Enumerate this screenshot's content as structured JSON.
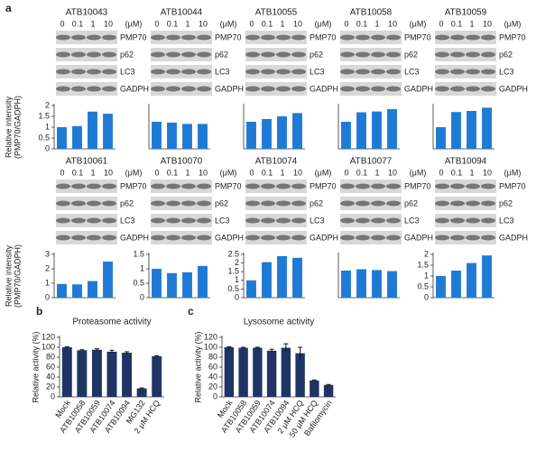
{
  "panel_labels": [
    "a",
    "b",
    "c"
  ],
  "chart_data": [
    {
      "type": "bar",
      "title": "ATB10043",
      "unit": "(μM)",
      "categories": [
        "0",
        "0.1",
        "1",
        "10"
      ],
      "blots": [
        "PMP70",
        "p62",
        "LC3",
        "GADPH"
      ],
      "ylabel": [
        "Relative intensity",
        "(PMP70/GADPH)"
      ],
      "values": [
        1.0,
        1.05,
        1.72,
        1.62
      ],
      "color": "#1f7ad6",
      "ylim": [
        0,
        2
      ],
      "yticks": [
        0,
        0.5,
        1,
        1.5,
        2
      ]
    },
    {
      "type": "bar",
      "title": "ATB10044",
      "unit": "(μM)",
      "categories": [
        "0",
        "0.1",
        "1",
        "10"
      ],
      "blots": [
        "PMP70",
        "p62",
        "LC3",
        "GADPH"
      ],
      "values": [
        1.0,
        0.97,
        0.92,
        0.92
      ],
      "color": "#1f7ad6",
      "ylim": [
        0,
        1.6
      ]
    },
    {
      "type": "bar",
      "title": "ATB10055",
      "unit": "(μM)",
      "categories": [
        "0",
        "0.1",
        "1",
        "10"
      ],
      "blots": [
        "PMP70",
        "p62",
        "LC3",
        "GADPH"
      ],
      "values": [
        1.0,
        1.1,
        1.2,
        1.32
      ],
      "color": "#1f7ad6",
      "ylim": [
        0,
        1.6
      ]
    },
    {
      "type": "bar",
      "title": "ATB10058",
      "unit": "(μM)",
      "categories": [
        "0",
        "0.1",
        "1",
        "10"
      ],
      "blots": [
        "PMP70",
        "p62",
        "LC3",
        "GADPH"
      ],
      "values": [
        1.0,
        1.35,
        1.38,
        1.47
      ],
      "color": "#1f7ad6",
      "ylim": [
        0,
        1.6
      ]
    },
    {
      "type": "bar",
      "title": "ATB10059",
      "unit": "(μM)",
      "categories": [
        "0",
        "0.1",
        "1",
        "10"
      ],
      "blots": [
        "PMP70",
        "p62",
        "LC3",
        "GADPH"
      ],
      "values": [
        1.0,
        1.7,
        1.75,
        1.9
      ],
      "color": "#1f7ad6",
      "ylim": [
        0,
        2
      ]
    },
    {
      "type": "bar",
      "title": "ATB10061",
      "unit": "(μM)",
      "categories": [
        "0",
        "0.1",
        "1",
        "10"
      ],
      "blots": [
        "PMP70",
        "p62",
        "LC3",
        "GADPH"
      ],
      "ylabel": [
        "Relative intensity",
        "(PMP70/GADPH)"
      ],
      "values": [
        0.95,
        0.92,
        1.15,
        2.5
      ],
      "color": "#1f7ad6",
      "ylim": [
        0,
        3
      ],
      "yticks": [
        0,
        1,
        2,
        3
      ]
    },
    {
      "type": "bar",
      "title": "ATB10070",
      "unit": "(μM)",
      "categories": [
        "0",
        "0.1",
        "1",
        "10"
      ],
      "blots": [
        "PMP70",
        "p62",
        "LC3",
        "GADPH"
      ],
      "values": [
        1.0,
        0.85,
        0.88,
        1.1
      ],
      "color": "#1f7ad6",
      "ylim": [
        0,
        1.5
      ],
      "yticks": [
        0,
        0.5,
        1,
        1.5
      ]
    },
    {
      "type": "bar",
      "title": "ATB10074",
      "unit": "(μM)",
      "categories": [
        "0",
        "0.1",
        "1",
        "10"
      ],
      "blots": [
        "PMP70",
        "p62",
        "LC3",
        "GADPH"
      ],
      "values": [
        1.0,
        2.05,
        2.4,
        2.3
      ],
      "color": "#1f7ad6",
      "ylim": [
        0,
        2.5
      ],
      "yticks": [
        0,
        0.5,
        1,
        1.5,
        2,
        2.5
      ]
    },
    {
      "type": "bar",
      "title": "ATB10077",
      "unit": "(μM)",
      "categories": [
        "0",
        "0.1",
        "1",
        "10"
      ],
      "blots": [
        "PMP70",
        "p62",
        "LC3",
        "GADPH"
      ],
      "values": [
        1.0,
        1.05,
        1.02,
        0.98
      ],
      "color": "#1f7ad6",
      "ylim": [
        0,
        1.6
      ]
    },
    {
      "type": "bar",
      "title": "ATB10094",
      "unit": "(μM)",
      "categories": [
        "0",
        "0.1",
        "1",
        "10"
      ],
      "blots": [
        "PMP70",
        "p62",
        "LC3",
        "GADPH"
      ],
      "values": [
        1.0,
        1.25,
        1.6,
        1.95
      ],
      "color": "#1f7ad6",
      "ylim": [
        0,
        2
      ],
      "yticks": [
        0,
        0.5,
        1,
        1.5,
        2
      ]
    },
    {
      "type": "bar",
      "title": "Proteasome activity",
      "ylabel": "Relative activity (%)",
      "categories": [
        "Mock",
        "ATB10058",
        "ATB10059",
        "ATB10074",
        "ATB10094",
        "MG132",
        "2 μM HCQ"
      ],
      "values": [
        100,
        94,
        95,
        91,
        89,
        17,
        82
      ],
      "errors": [
        1,
        1,
        2,
        3,
        2,
        1,
        1
      ],
      "color": "#1f3464",
      "ylim": [
        0,
        120
      ],
      "yticks": [
        0,
        20,
        40,
        60,
        80,
        100,
        120
      ]
    },
    {
      "type": "bar",
      "title": "Lysosome activity",
      "ylabel": "Relative activity (%)",
      "categories": [
        "Mock",
        "ATB10058",
        "ATB10059",
        "ATB10074",
        "ATB10094",
        "2 μM HCQ",
        "50 μM HCQ",
        "Bafilomycin"
      ],
      "values": [
        100,
        99,
        99,
        93,
        99,
        88,
        33,
        24
      ],
      "errors": [
        1,
        1,
        1,
        3,
        8,
        12,
        1,
        1
      ],
      "color": "#1f3464",
      "ylim": [
        0,
        120
      ],
      "yticks": [
        0,
        20,
        40,
        60,
        80,
        100,
        120
      ]
    }
  ]
}
